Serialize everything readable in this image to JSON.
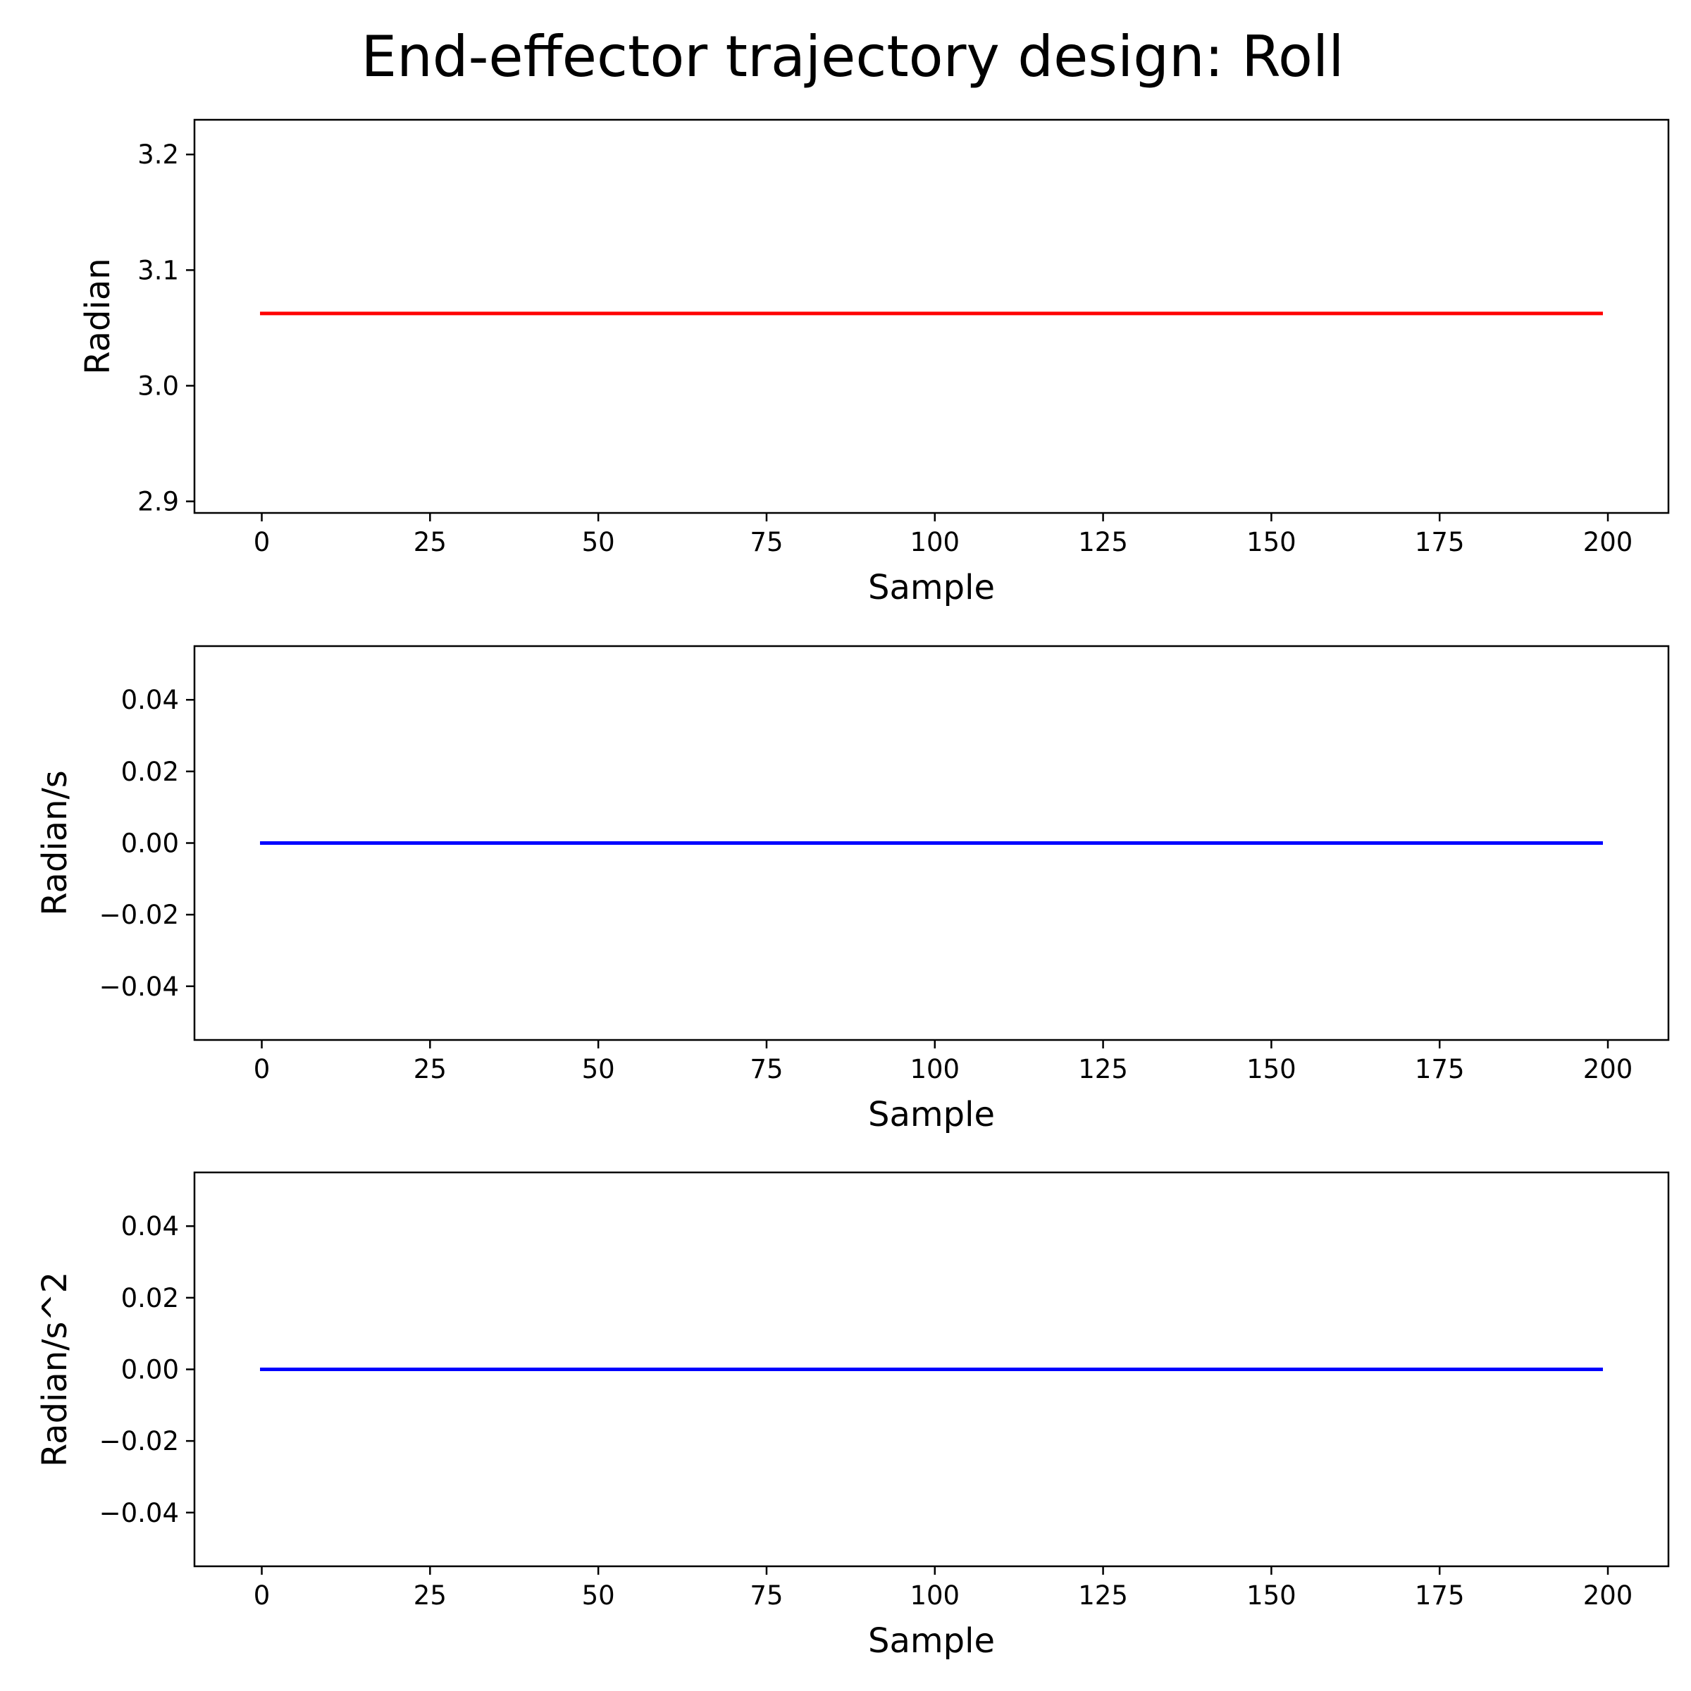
{
  "figure": {
    "title": "End-effector trajectory design: Roll"
  },
  "chart_data": [
    {
      "type": "line",
      "title": "",
      "xlabel": "Sample",
      "ylabel": "Radian",
      "xlim": [
        -10,
        209
      ],
      "ylim": [
        2.89,
        3.23
      ],
      "xticks": [
        0,
        25,
        50,
        75,
        100,
        125,
        150,
        175,
        200
      ],
      "xtick_labels": [
        "0",
        "25",
        "50",
        "75",
        "100",
        "125",
        "150",
        "175",
        "200"
      ],
      "yticks": [
        2.9,
        3.0,
        3.1,
        3.2
      ],
      "ytick_labels": [
        "2.9",
        "3.0",
        "3.1",
        "3.2"
      ],
      "grid": false,
      "series": [
        {
          "color": "#ff0000",
          "x": [
            0,
            199
          ],
          "y": [
            3.0625,
            3.0625
          ]
        }
      ]
    },
    {
      "type": "line",
      "title": "",
      "xlabel": "Sample",
      "ylabel": "Radian/s",
      "xlim": [
        -10,
        209
      ],
      "ylim": [
        -0.055,
        0.055
      ],
      "xticks": [
        0,
        25,
        50,
        75,
        100,
        125,
        150,
        175,
        200
      ],
      "xtick_labels": [
        "0",
        "25",
        "50",
        "75",
        "100",
        "125",
        "150",
        "175",
        "200"
      ],
      "yticks": [
        -0.04,
        -0.02,
        0.0,
        0.02,
        0.04
      ],
      "ytick_labels": [
        "−0.04",
        "−0.02",
        "0.00",
        "0.02",
        "0.04"
      ],
      "grid": false,
      "series": [
        {
          "color": "#0000ff",
          "x": [
            0,
            199
          ],
          "y": [
            0,
            0
          ]
        }
      ]
    },
    {
      "type": "line",
      "title": "",
      "xlabel": "Sample",
      "ylabel": "Radian/s^2",
      "xlim": [
        -10,
        209
      ],
      "ylim": [
        -0.055,
        0.055
      ],
      "xticks": [
        0,
        25,
        50,
        75,
        100,
        125,
        150,
        175,
        200
      ],
      "xtick_labels": [
        "0",
        "25",
        "50",
        "75",
        "100",
        "125",
        "150",
        "175",
        "200"
      ],
      "yticks": [
        -0.04,
        -0.02,
        0.0,
        0.02,
        0.04
      ],
      "ytick_labels": [
        "−0.04",
        "−0.02",
        "0.00",
        "0.02",
        "0.04"
      ],
      "grid": false,
      "series": [
        {
          "color": "#0000ff",
          "x": [
            0,
            199
          ],
          "y": [
            0,
            0
          ]
        }
      ]
    }
  ]
}
